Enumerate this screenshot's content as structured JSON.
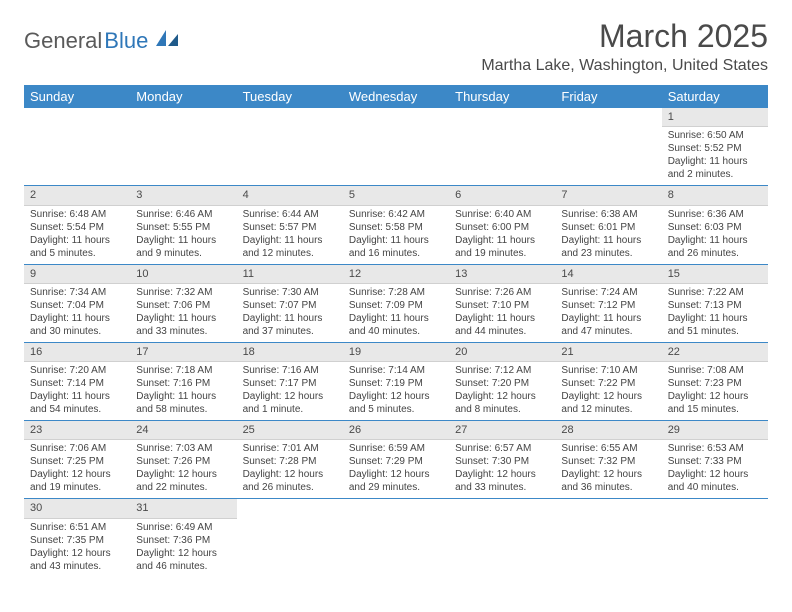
{
  "brand": {
    "part1": "General",
    "part2": "Blue"
  },
  "title": "March 2025",
  "location": "Martha Lake, Washington, United States",
  "theme": {
    "header_bg": "#3c88c7",
    "header_text": "#ffffff",
    "daynum_bg": "#e8e8e8",
    "border": "#3c88c7",
    "text": "#444444",
    "title_fontsize": 32,
    "location_fontsize": 16,
    "cell_fontsize": 10
  },
  "weekdays": [
    "Sunday",
    "Monday",
    "Tuesday",
    "Wednesday",
    "Thursday",
    "Friday",
    "Saturday"
  ],
  "weeks": [
    [
      null,
      null,
      null,
      null,
      null,
      null,
      {
        "n": "1",
        "sunrise": "Sunrise: 6:50 AM",
        "sunset": "Sunset: 5:52 PM",
        "day": "Daylight: 11 hours and 2 minutes."
      }
    ],
    [
      {
        "n": "2",
        "sunrise": "Sunrise: 6:48 AM",
        "sunset": "Sunset: 5:54 PM",
        "day": "Daylight: 11 hours and 5 minutes."
      },
      {
        "n": "3",
        "sunrise": "Sunrise: 6:46 AM",
        "sunset": "Sunset: 5:55 PM",
        "day": "Daylight: 11 hours and 9 minutes."
      },
      {
        "n": "4",
        "sunrise": "Sunrise: 6:44 AM",
        "sunset": "Sunset: 5:57 PM",
        "day": "Daylight: 11 hours and 12 minutes."
      },
      {
        "n": "5",
        "sunrise": "Sunrise: 6:42 AM",
        "sunset": "Sunset: 5:58 PM",
        "day": "Daylight: 11 hours and 16 minutes."
      },
      {
        "n": "6",
        "sunrise": "Sunrise: 6:40 AM",
        "sunset": "Sunset: 6:00 PM",
        "day": "Daylight: 11 hours and 19 minutes."
      },
      {
        "n": "7",
        "sunrise": "Sunrise: 6:38 AM",
        "sunset": "Sunset: 6:01 PM",
        "day": "Daylight: 11 hours and 23 minutes."
      },
      {
        "n": "8",
        "sunrise": "Sunrise: 6:36 AM",
        "sunset": "Sunset: 6:03 PM",
        "day": "Daylight: 11 hours and 26 minutes."
      }
    ],
    [
      {
        "n": "9",
        "sunrise": "Sunrise: 7:34 AM",
        "sunset": "Sunset: 7:04 PM",
        "day": "Daylight: 11 hours and 30 minutes."
      },
      {
        "n": "10",
        "sunrise": "Sunrise: 7:32 AM",
        "sunset": "Sunset: 7:06 PM",
        "day": "Daylight: 11 hours and 33 minutes."
      },
      {
        "n": "11",
        "sunrise": "Sunrise: 7:30 AM",
        "sunset": "Sunset: 7:07 PM",
        "day": "Daylight: 11 hours and 37 minutes."
      },
      {
        "n": "12",
        "sunrise": "Sunrise: 7:28 AM",
        "sunset": "Sunset: 7:09 PM",
        "day": "Daylight: 11 hours and 40 minutes."
      },
      {
        "n": "13",
        "sunrise": "Sunrise: 7:26 AM",
        "sunset": "Sunset: 7:10 PM",
        "day": "Daylight: 11 hours and 44 minutes."
      },
      {
        "n": "14",
        "sunrise": "Sunrise: 7:24 AM",
        "sunset": "Sunset: 7:12 PM",
        "day": "Daylight: 11 hours and 47 minutes."
      },
      {
        "n": "15",
        "sunrise": "Sunrise: 7:22 AM",
        "sunset": "Sunset: 7:13 PM",
        "day": "Daylight: 11 hours and 51 minutes."
      }
    ],
    [
      {
        "n": "16",
        "sunrise": "Sunrise: 7:20 AM",
        "sunset": "Sunset: 7:14 PM",
        "day": "Daylight: 11 hours and 54 minutes."
      },
      {
        "n": "17",
        "sunrise": "Sunrise: 7:18 AM",
        "sunset": "Sunset: 7:16 PM",
        "day": "Daylight: 11 hours and 58 minutes."
      },
      {
        "n": "18",
        "sunrise": "Sunrise: 7:16 AM",
        "sunset": "Sunset: 7:17 PM",
        "day": "Daylight: 12 hours and 1 minute."
      },
      {
        "n": "19",
        "sunrise": "Sunrise: 7:14 AM",
        "sunset": "Sunset: 7:19 PM",
        "day": "Daylight: 12 hours and 5 minutes."
      },
      {
        "n": "20",
        "sunrise": "Sunrise: 7:12 AM",
        "sunset": "Sunset: 7:20 PM",
        "day": "Daylight: 12 hours and 8 minutes."
      },
      {
        "n": "21",
        "sunrise": "Sunrise: 7:10 AM",
        "sunset": "Sunset: 7:22 PM",
        "day": "Daylight: 12 hours and 12 minutes."
      },
      {
        "n": "22",
        "sunrise": "Sunrise: 7:08 AM",
        "sunset": "Sunset: 7:23 PM",
        "day": "Daylight: 12 hours and 15 minutes."
      }
    ],
    [
      {
        "n": "23",
        "sunrise": "Sunrise: 7:06 AM",
        "sunset": "Sunset: 7:25 PM",
        "day": "Daylight: 12 hours and 19 minutes."
      },
      {
        "n": "24",
        "sunrise": "Sunrise: 7:03 AM",
        "sunset": "Sunset: 7:26 PM",
        "day": "Daylight: 12 hours and 22 minutes."
      },
      {
        "n": "25",
        "sunrise": "Sunrise: 7:01 AM",
        "sunset": "Sunset: 7:28 PM",
        "day": "Daylight: 12 hours and 26 minutes."
      },
      {
        "n": "26",
        "sunrise": "Sunrise: 6:59 AM",
        "sunset": "Sunset: 7:29 PM",
        "day": "Daylight: 12 hours and 29 minutes."
      },
      {
        "n": "27",
        "sunrise": "Sunrise: 6:57 AM",
        "sunset": "Sunset: 7:30 PM",
        "day": "Daylight: 12 hours and 33 minutes."
      },
      {
        "n": "28",
        "sunrise": "Sunrise: 6:55 AM",
        "sunset": "Sunset: 7:32 PM",
        "day": "Daylight: 12 hours and 36 minutes."
      },
      {
        "n": "29",
        "sunrise": "Sunrise: 6:53 AM",
        "sunset": "Sunset: 7:33 PM",
        "day": "Daylight: 12 hours and 40 minutes."
      }
    ],
    [
      {
        "n": "30",
        "sunrise": "Sunrise: 6:51 AM",
        "sunset": "Sunset: 7:35 PM",
        "day": "Daylight: 12 hours and 43 minutes."
      },
      {
        "n": "31",
        "sunrise": "Sunrise: 6:49 AM",
        "sunset": "Sunset: 7:36 PM",
        "day": "Daylight: 12 hours and 46 minutes."
      },
      null,
      null,
      null,
      null,
      null
    ]
  ]
}
